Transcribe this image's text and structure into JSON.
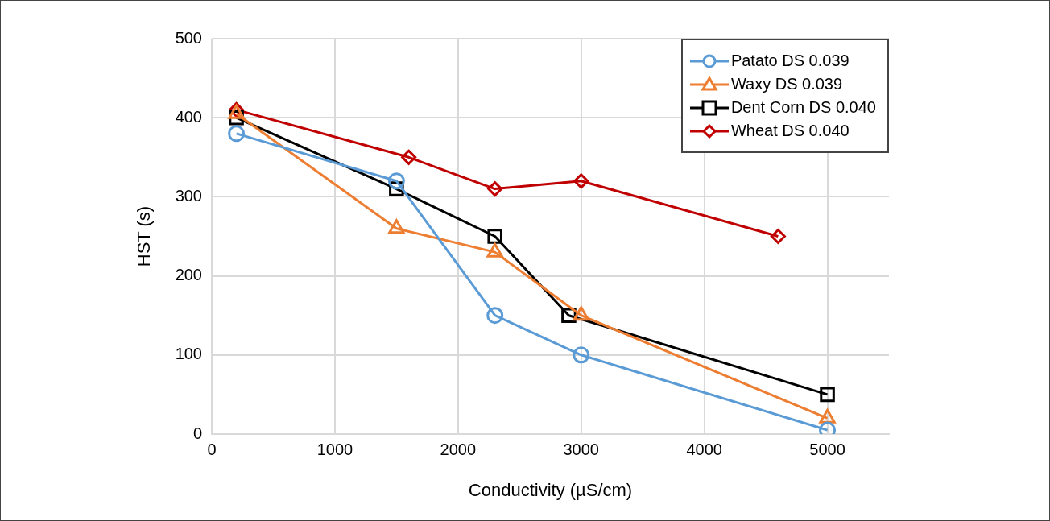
{
  "chart_data": {
    "type": "line",
    "xlabel": "Conductivity (µS/cm)",
    "ylabel": "HST (s)",
    "xlim": [
      0,
      5500
    ],
    "xticks": [
      0,
      1000,
      2000,
      3000,
      4000,
      5000
    ],
    "ylim": [
      0,
      500
    ],
    "yticks": [
      0,
      100,
      200,
      300,
      400,
      500
    ],
    "grid": true,
    "legend": "top right",
    "series": [
      {
        "name": "Patato DS 0.039",
        "color": "#5b9bd5",
        "marker": "circle",
        "x": [
          200,
          1500,
          2300,
          3000,
          5000
        ],
        "values": [
          380,
          320,
          150,
          100,
          5
        ]
      },
      {
        "name": "Waxy DS 0.039",
        "color": "#ed7d31",
        "marker": "triangle",
        "x": [
          200,
          1500,
          2300,
          3000,
          5000
        ],
        "values": [
          405,
          260,
          230,
          150,
          20
        ]
      },
      {
        "name": "Dent Corn DS 0.040",
        "color": "#000000",
        "marker": "square",
        "x": [
          200,
          1500,
          2300,
          2900,
          5000
        ],
        "values": [
          400,
          310,
          250,
          150,
          50
        ]
      },
      {
        "name": "Wheat DS 0.040",
        "color": "#c00000",
        "marker": "diamond",
        "x": [
          200,
          1600,
          2300,
          3000,
          4600
        ],
        "values": [
          410,
          350,
          310,
          320,
          250
        ]
      }
    ]
  }
}
